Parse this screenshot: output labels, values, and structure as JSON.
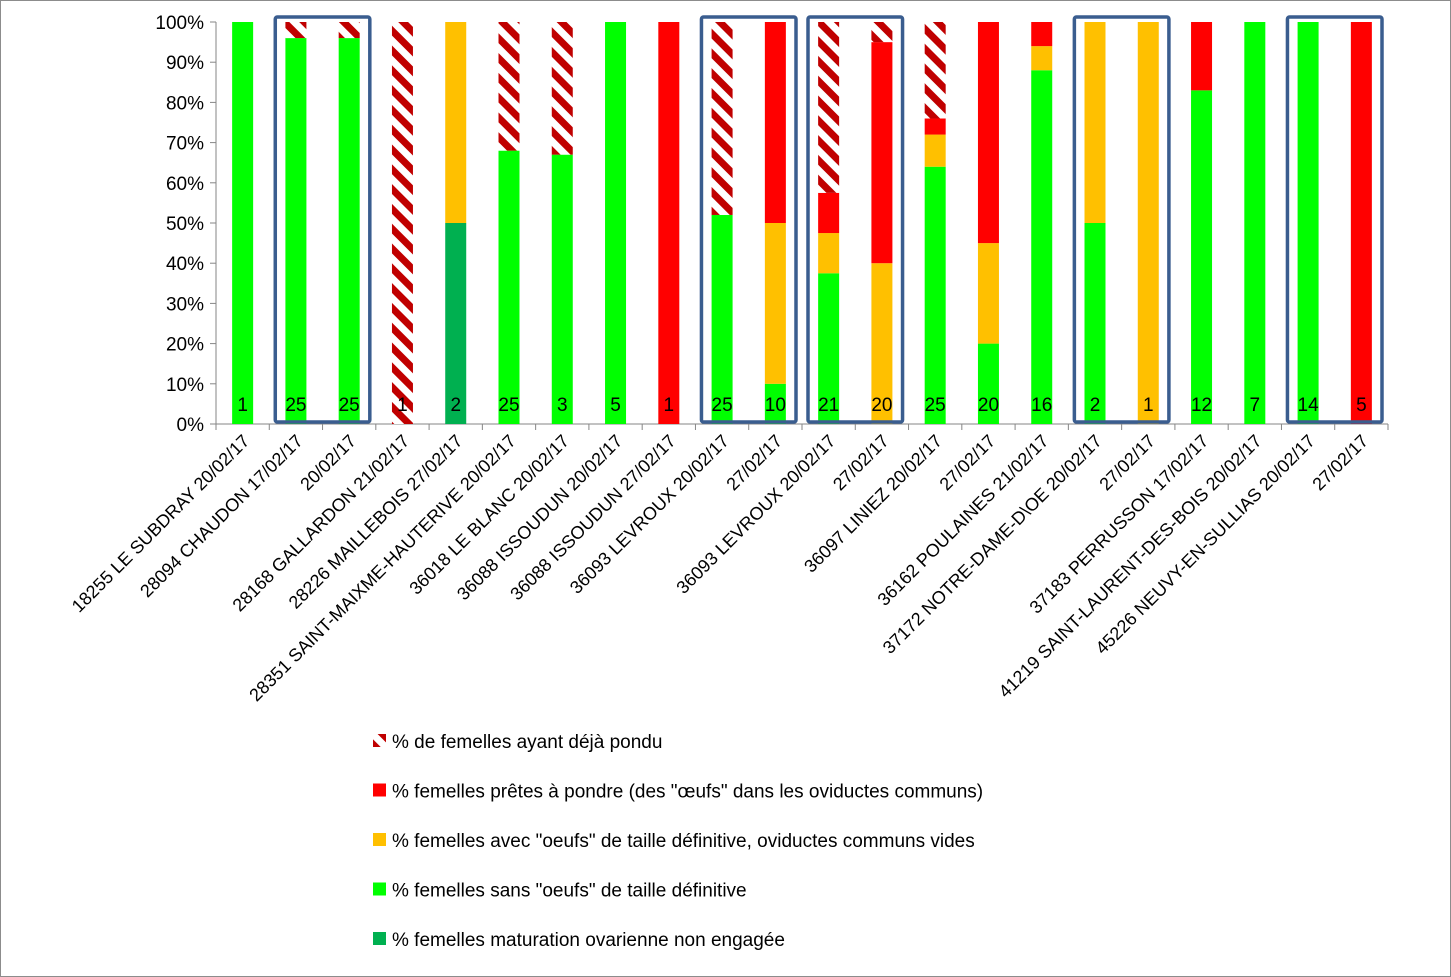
{
  "chart_data": {
    "type": "bar",
    "stacked": true,
    "percent_stacked": true,
    "ylim": [
      0,
      100
    ],
    "y_ticks": [
      "0%",
      "10%",
      "20%",
      "30%",
      "40%",
      "50%",
      "60%",
      "70%",
      "80%",
      "90%",
      "100%"
    ],
    "grid": false,
    "legend_position": "bottom",
    "categories": [
      "18255 LE SUBDRAY 20/02/17",
      "28094 CHAUDON 17/02/17",
      "20/02/17",
      "28168 GALLARDON 21/02/17",
      "28226 MAILLEBOIS 27/02/17",
      "28351 SAINT-MAIXME-HAUTERIVE 20/02/17",
      "36018 LE BLANC 20/02/17",
      "36088 ISSOUDUN 20/02/17",
      "36088 ISSOUDUN 27/02/17",
      "36093 LEVROUX 20/02/17",
      "27/02/17",
      "36093 LEVROUX 20/02/17",
      "27/02/17",
      "36097 LINIEZ 20/02/17",
      "27/02/17",
      "36162 POULAINES 21/02/17",
      "37172 NOTRE-DAME-D\\OE 20/02/17",
      "27/02/17",
      "37183 PERRUSSON 17/02/17",
      "41219 SAINT-LAURENT-DES-BOIS 20/02/17",
      "45226 NEUVY-EN-SULLIAS 20/02/17",
      "27/02/17"
    ],
    "sample_sizes": [
      "1",
      "25",
      "25",
      "1",
      "2",
      "25",
      "3",
      "5",
      "1",
      "25",
      "10",
      "21",
      "20",
      "25",
      "20",
      "16",
      "2",
      "1",
      "12",
      "7",
      "14",
      "5"
    ],
    "series": [
      {
        "name": "% femelles maturation ovarienne non engagée",
        "color": "#00b050",
        "pattern": "solid",
        "values": [
          0,
          0,
          0,
          0,
          50,
          0,
          0,
          0,
          0,
          0,
          0,
          0,
          0,
          0,
          0,
          0,
          0,
          0,
          0,
          0,
          0,
          0
        ]
      },
      {
        "name": "% femelles sans \"oeufs\" de taille définitive",
        "color": "#00ff00",
        "pattern": "solid",
        "values": [
          100,
          96,
          96,
          0,
          0,
          68,
          67,
          100,
          0,
          52,
          10,
          37.5,
          0,
          64,
          20,
          88,
          50,
          0,
          83,
          100,
          100,
          0
        ]
      },
      {
        "name": "% femelles avec \"oeufs\" de taille définitive, oviductes communs vides",
        "color": "#ffc000",
        "pattern": "solid",
        "values": [
          0,
          0,
          0,
          0,
          50,
          0,
          0,
          0,
          0,
          0,
          40,
          10,
          40,
          8,
          25,
          6,
          50,
          100,
          0,
          0,
          0,
          0
        ]
      },
      {
        "name": "% femelles prêtes à pondre (des \"œufs\" dans les oviductes communs)",
        "color": "#ff0000",
        "pattern": "solid",
        "values": [
          0,
          0,
          0,
          0,
          0,
          0,
          0,
          0,
          100,
          0,
          50,
          10,
          55,
          4,
          55,
          6,
          0,
          0,
          17,
          0,
          0,
          100
        ]
      },
      {
        "name": "% de femelles ayant déjà pondu",
        "color": "#c00000",
        "pattern": "diagonal-stripes",
        "values": [
          0,
          4,
          4,
          100,
          0,
          32,
          33,
          0,
          0,
          48,
          0,
          42.5,
          5,
          24,
          0,
          0,
          0,
          0,
          0,
          0,
          0,
          0
        ]
      }
    ],
    "legend_order": [
      4,
      3,
      2,
      1,
      0
    ],
    "highlight_groups": [
      [
        1,
        2
      ],
      [
        9,
        10
      ],
      [
        11,
        12
      ],
      [
        16,
        17
      ],
      [
        20,
        21
      ]
    ],
    "highlight_color": "#3a5d8f"
  }
}
